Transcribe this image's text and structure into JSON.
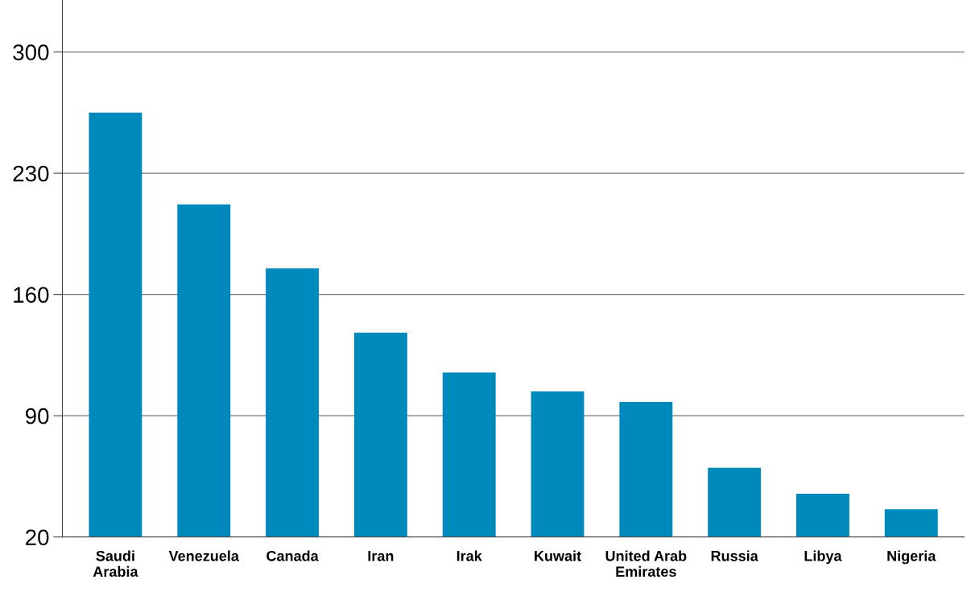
{
  "chart_data": {
    "type": "bar",
    "categories": [
      "Saudi\nArabia",
      "Venezuela",
      "Canada",
      "Iran",
      "Irak",
      "Kuwait",
      "United Arab\nEmirates",
      "Russia",
      "Libya",
      "Nigeria"
    ],
    "values": [
      265,
      212,
      175,
      138,
      115,
      104,
      98,
      60,
      45,
      36
    ],
    "color": "#0089bb",
    "ylim": [
      20,
      330
    ],
    "yticks": [
      20,
      90,
      160,
      230,
      300
    ],
    "grid": "y"
  }
}
